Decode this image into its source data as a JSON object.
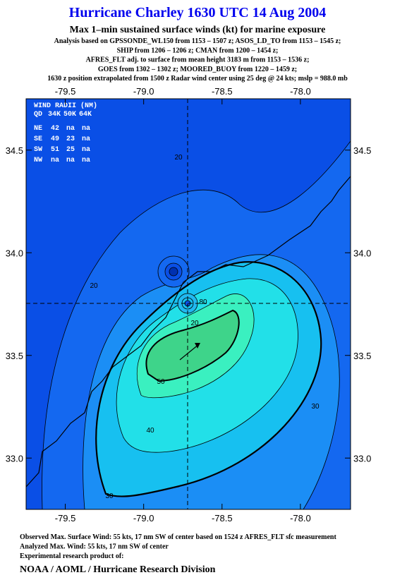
{
  "header": {
    "title": "Hurricane Charley 1630 UTC 14 Aug 2004",
    "subtitle": "Max 1–min sustained surface winds (kt) for marine exposure",
    "lines": [
      "Analysis based on  GPSSONDE_WL150 from 1153 – 1507 z;  ASOS_LD_TO from 1153 – 1545 z;",
      "SHIP from 1206 – 1206 z;  CMAN from 1200 – 1454 z;",
      "AFRES_FLT adj. to surface from mean height 3183 m from 1153 – 1536 z;",
      "GOES from 1302 – 1302 z;  MOORED_BUOY from 1220 – 1459 z;",
      "1630 z position extrapolated from 1500 z Radar wind center using 25 deg @ 24 kts; mslp = 988.0 mb"
    ]
  },
  "map": {
    "xlim": [
      -79.75,
      -77.68
    ],
    "ylim": [
      32.75,
      34.75
    ],
    "xticks": [
      -79.5,
      {
        "value": -79.0,
        "label": "-79.0"
      },
      -78.5,
      {
        "value": -78.0,
        "label": "-78.0"
      }
    ],
    "yticks": [
      34.5,
      {
        "value": 34.0,
        "label": "34.0"
      },
      33.5,
      {
        "value": 33.0,
        "label": "33.0"
      }
    ],
    "contour_labels": [
      "20",
      "20",
      "20",
      "80",
      "50",
      "40",
      "30",
      "30"
    ]
  },
  "wind_radii": {
    "title": "WIND RADII (NM)",
    "header": [
      "QD",
      "34K",
      "50K",
      "64K"
    ],
    "rows": [
      [
        "NE",
        "42",
        "na",
        "na"
      ],
      [
        "SE",
        "49",
        "23",
        "na"
      ],
      [
        "SW",
        "51",
        "25",
        "na"
      ],
      [
        "NW",
        "na",
        "na",
        "na"
      ]
    ]
  },
  "footer": {
    "lines": [
      "Observed Max. Surface Wind: 55 kts, 17 nm SW of center based on 1524 z AFRES_FLT sfc measurement",
      "Analyzed Max. Wind: 55 kts, 17 nm SW of center",
      "Experimental research product of:"
    ],
    "org": "NOAA / AOML / Hurricane Research Division"
  }
}
